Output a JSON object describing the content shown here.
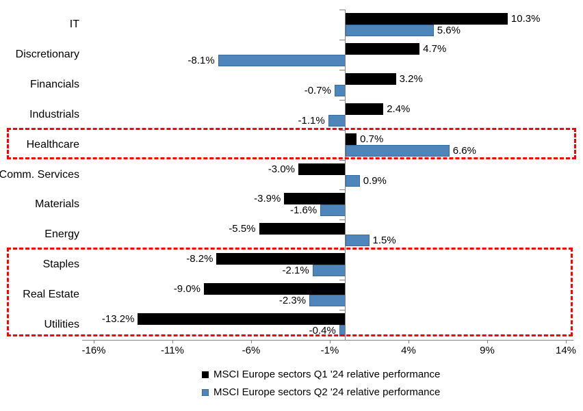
{
  "chart_data": {
    "type": "bar",
    "orientation": "horizontal",
    "title": "",
    "xlabel": "",
    "ylabel": "",
    "categories": [
      "IT",
      "Discretionary",
      "Financials",
      "Industrials",
      "Healthcare",
      "Comm. Services",
      "Materials",
      "Energy",
      "Staples",
      "Real Estate",
      "Utilities"
    ],
    "series": [
      {
        "name": "MSCI Europe sectors Q1 '24 relative performance",
        "color": "#000000",
        "border_color": "#000000",
        "values": [
          10.3,
          4.7,
          3.2,
          2.4,
          0.7,
          -3.0,
          -3.9,
          -5.5,
          -8.2,
          -9.0,
          -13.2
        ],
        "labels": [
          "10.3%",
          "4.7%",
          "3.2%",
          "2.4%",
          "0.7%",
          "-3.0%",
          "-3.9%",
          "-5.5%",
          "-8.2%",
          "-9.0%",
          "-13.2%"
        ]
      },
      {
        "name": "MSCI Europe sectors Q2 '24 relative performance",
        "color": "#4E86BC",
        "border_color": "#3A6A99",
        "values": [
          5.6,
          -8.1,
          -0.7,
          -1.1,
          6.6,
          0.9,
          -1.6,
          1.5,
          -2.1,
          -2.3,
          -0.4
        ],
        "labels": [
          "5.6%",
          "-8.1%",
          "-0.7%",
          "-1.1%",
          "6.6%",
          "0.9%",
          "-1.6%",
          "1.5%",
          "-2.1%",
          "-2.3%",
          "-0.4%"
        ]
      }
    ],
    "x_ticks": [
      -16,
      -11,
      -6,
      -1,
      4,
      9,
      14
    ],
    "x_tick_labels": [
      "-16%",
      "-11%",
      "-6%",
      "-1%",
      "4%",
      "9%",
      "14%"
    ],
    "xlim": [
      -16.75,
      14.5
    ],
    "grid": false,
    "axis_color": "#808080",
    "legend_position": "bottom",
    "highlights": [
      {
        "style": "red-dashed-box",
        "color": "#FF0000",
        "from_category": "Healthcare",
        "to_category": "Healthcare"
      },
      {
        "style": "red-dashed-box",
        "color": "#FF0000",
        "from_category": "Staples",
        "to_category": "Utilities"
      }
    ]
  }
}
